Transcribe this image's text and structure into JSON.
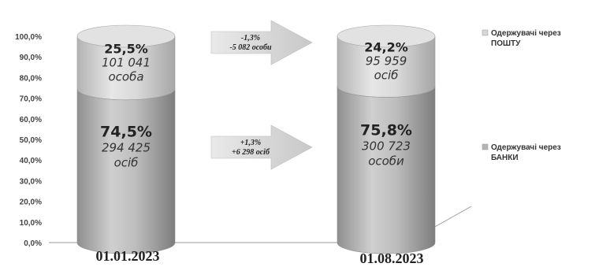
{
  "chart_data": {
    "type": "bar",
    "stacked": true,
    "percent_scale": true,
    "ylim": [
      0,
      100
    ],
    "ytick_labels": [
      "0,0%",
      "10,0%",
      "20,0%",
      "30,0%",
      "40,0%",
      "50,0%",
      "60,0%",
      "70,0%",
      "80,0%",
      "90,0%",
      "100,0%"
    ],
    "categories": [
      "01.01.2023",
      "01.08.2023"
    ],
    "series": [
      {
        "name": "Одержувачі через БАНКИ",
        "color": "#b4b4b4",
        "values": [
          74.5,
          75.8
        ],
        "pct_labels": [
          "74,5%",
          "75,8%"
        ],
        "count_labels": [
          [
            "294 425",
            "осіб"
          ],
          [
            "300 723",
            "особи"
          ]
        ]
      },
      {
        "name": "Одержувачі через ПОШТУ",
        "color": "#d6d6d6",
        "values": [
          25.5,
          24.2
        ],
        "pct_labels": [
          "25,5%",
          "24,2%"
        ],
        "count_labels": [
          [
            "101 041",
            "особа"
          ],
          [
            "95 959",
            "осіб"
          ]
        ]
      }
    ],
    "legend": {
      "position": "right",
      "entries": [
        [
          "Одержувачі через",
          "ПОШТУ"
        ],
        [
          "Одержувачі через",
          "БАНКИ"
        ]
      ]
    },
    "annotations": [
      {
        "series": "Одержувачі через ПОШТУ",
        "lines": [
          "-1,3%",
          "-5  082 особи"
        ]
      },
      {
        "series": "Одержувачі через БАНКИ",
        "lines": [
          "+1,3%",
          "+6 298 осіб"
        ]
      }
    ],
    "grid": false
  }
}
